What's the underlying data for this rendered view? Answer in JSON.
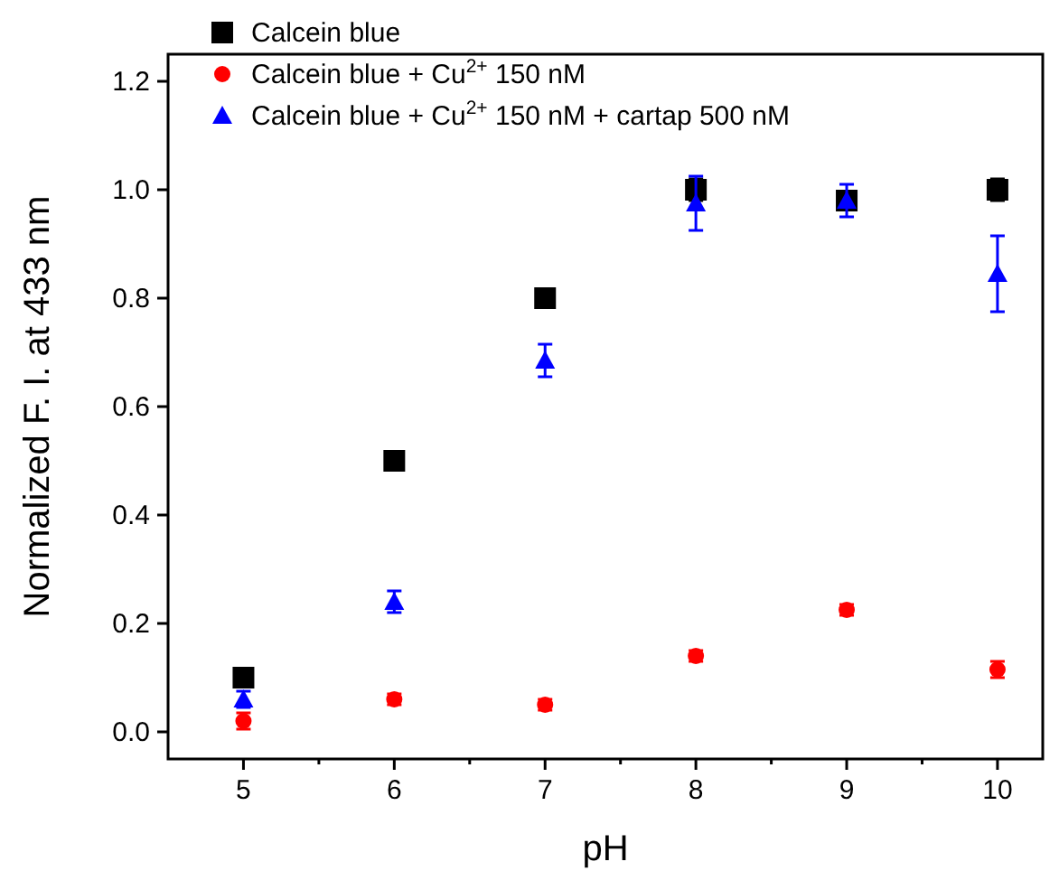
{
  "chart_data": {
    "type": "scatter",
    "xlabel": "pH",
    "ylabel": "Normalized F. I. at 433 nm",
    "x": [
      5,
      6,
      7,
      8,
      9,
      10
    ],
    "xlim": [
      4.5,
      10.3
    ],
    "xticks": [
      5,
      6,
      7,
      8,
      9,
      10
    ],
    "ylim": [
      -0.05,
      1.25
    ],
    "yticks": [
      {
        "value": 0,
        "label": "0.0"
      },
      0.2,
      0.4,
      0.6,
      0.8,
      {
        "value": 1,
        "label": "1.0"
      },
      1.2
    ],
    "legend": "top left",
    "grid": false,
    "series": [
      {
        "name": "Calcein blue",
        "color": "#000000",
        "marker": "square",
        "values": [
          0.1,
          0.5,
          0.8,
          1.0,
          0.98,
          1.0
        ],
        "errors": [
          0.01,
          0.015,
          0.01,
          0.02,
          0.015,
          0.02
        ]
      },
      {
        "name": "Calcein blue + Cu$^{2+}$ 150 nM",
        "color": "#ff0000",
        "marker": "circle",
        "values": [
          0.02,
          0.06,
          0.05,
          0.14,
          0.225,
          0.115
        ],
        "errors": [
          0.015,
          0.01,
          0.01,
          0.01,
          0.01,
          0.015
        ]
      },
      {
        "name": "Calcein blue + Cu$^{2+}$ 150 nM + cartap 500 nM",
        "color": "#0000ff",
        "marker": "triangle",
        "values": [
          0.06,
          0.24,
          0.685,
          0.975,
          0.98,
          0.845
        ],
        "errors": [
          0.015,
          0.02,
          0.03,
          0.05,
          0.03,
          0.07
        ]
      }
    ]
  }
}
